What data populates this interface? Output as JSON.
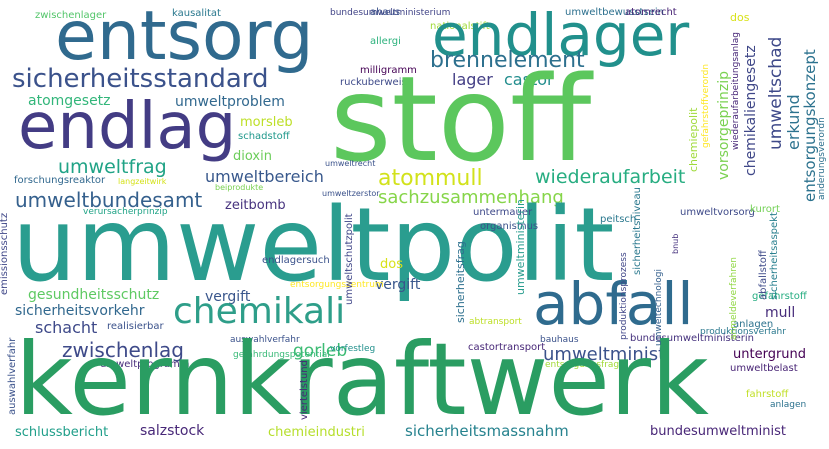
{
  "words": [
    {
      "text": "umweltpolit",
      "color": "#2a9d8f"
    },
    {
      "text": "kernkraftwerk",
      "color": "#2a9d62"
    },
    {
      "text": "stoff",
      "color": "#5cc75d"
    },
    {
      "text": "entsorg",
      "color": "#306a8e"
    },
    {
      "text": "endlager",
      "color": "#21908c"
    },
    {
      "text": "endlag",
      "color": "#433c84"
    },
    {
      "text": "chemikali",
      "color": "#2e9e89"
    },
    {
      "text": "abfall",
      "color": "#2f6b8e"
    },
    {
      "text": "sicherheitsstandard",
      "color": "#3b528b"
    },
    {
      "text": "brennelement",
      "color": "#2d708e"
    },
    {
      "text": "atommull",
      "color": "#d2e21b"
    },
    {
      "text": "wiederaufarbeit",
      "color": "#27ad81"
    },
    {
      "text": "umweltbundesamt",
      "color": "#35608d"
    },
    {
      "text": "sachzusammenhang",
      "color": "#86d549"
    },
    {
      "text": "zwischenlag",
      "color": "#3e4a89"
    },
    {
      "text": "umweltminist",
      "color": "#3b528b"
    },
    {
      "text": "gorleb",
      "color": "#3dbc74"
    },
    {
      "text": "umweltfrag",
      "color": "#20a386"
    },
    {
      "text": "umweltbereich",
      "color": "#38588c"
    },
    {
      "text": "umweltproblem",
      "color": "#31688e"
    },
    {
      "text": "lager",
      "color": "#433e85"
    },
    {
      "text": "castor",
      "color": "#228d8d"
    },
    {
      "text": "atomgesetz",
      "color": "#32b67a"
    },
    {
      "text": "umweltschad",
      "color": "#3e4989"
    },
    {
      "text": "erkund",
      "color": "#2c728e"
    },
    {
      "text": "morsleb",
      "color": "#bddf26"
    },
    {
      "text": "dioxin",
      "color": "#6ccd5a"
    },
    {
      "text": "zeitbomb",
      "color": "#46327e"
    },
    {
      "text": "vergift",
      "color": "#39568c"
    },
    {
      "text": "gesundheitsschutz",
      "color": "#5ec962"
    },
    {
      "text": "sicherheitsvorkehr",
      "color": "#31688e"
    },
    {
      "text": "schacht",
      "color": "#3e4989"
    },
    {
      "text": "salzstock",
      "color": "#482878"
    },
    {
      "text": "schlussbericht",
      "color": "#1f9e89"
    },
    {
      "text": "chemieindustri",
      "color": "#b5de2b"
    },
    {
      "text": "sicherheitsmassnahm",
      "color": "#26828e"
    },
    {
      "text": "bundesumweltminist",
      "color": "#482677"
    },
    {
      "text": "untergrund",
      "color": "#440154"
    },
    {
      "text": "umweltbelast",
      "color": "#482475"
    },
    {
      "text": "mull",
      "color": "#472d7b"
    },
    {
      "text": "dos",
      "color": "#d8e219"
    },
    {
      "text": "chemiepolit",
      "color": "#9fda3a"
    },
    {
      "text": "vorsorgeprinzip",
      "color": "#7ad151"
    },
    {
      "text": "entsorgungskonzept",
      "color": "#2c728e"
    },
    {
      "text": "chemikaliengesetz",
      "color": "#3f4788"
    },
    {
      "text": "zwischenlager",
      "color": "#52c569"
    },
    {
      "text": "kausalitat",
      "color": "#2a788e"
    },
    {
      "text": "bundesumweltministerium",
      "color": "#414487"
    },
    {
      "text": "ahaus",
      "color": "#3b528b"
    },
    {
      "text": "umweltbewusstsein",
      "color": "#2d708e"
    },
    {
      "text": "atomrecht",
      "color": "#482475"
    },
    {
      "text": "nationalstift",
      "color": "#a0da39"
    },
    {
      "text": "allergi",
      "color": "#2db27d"
    },
    {
      "text": "milligramm",
      "color": "#440154"
    },
    {
      "text": "ruckuberweis",
      "color": "#3e4a89"
    },
    {
      "text": "sicherheitsgrund",
      "color": "#35b779"
    },
    {
      "text": "storfallverordn",
      "color": "#21a685"
    },
    {
      "text": "forschungsreaktor",
      "color": "#31688e"
    },
    {
      "text": "langzeitwirk",
      "color": "#d5e21a"
    },
    {
      "text": "gefahrstoffverordn",
      "color": "#fde725"
    },
    {
      "text": "wiederaufarbeitungsanlag",
      "color": "#482878"
    },
    {
      "text": "schadstoff",
      "color": "#1f988b"
    },
    {
      "text": "umweltrecht",
      "color": "#3b528b"
    },
    {
      "text": "umweltzerstor",
      "color": "#3b528b"
    },
    {
      "text": "beiprodukte",
      "color": "#7ad151"
    },
    {
      "text": "verursacherprinzip",
      "color": "#20a386"
    },
    {
      "text": "emissionsschutz",
      "color": "#3f4788"
    },
    {
      "text": "umweltschutzpolit",
      "color": "#404688"
    },
    {
      "text": "umweltministerin",
      "color": "#2a9d8f"
    },
    {
      "text": "sicherheitsfrag",
      "color": "#2d708e"
    },
    {
      "text": "untermauer",
      "color": "#3e4989"
    },
    {
      "text": "organismus",
      "color": "#3b528b"
    },
    {
      "text": "peitsch",
      "color": "#2a788e"
    },
    {
      "text": "endlagersuch",
      "color": "#3b528b"
    },
    {
      "text": "produktionsprozess",
      "color": "#404688"
    },
    {
      "text": "umweltvorsorg",
      "color": "#3e4a89"
    },
    {
      "text": "umweltechnologi",
      "color": "#35608d"
    },
    {
      "text": "kurort",
      "color": "#73d056"
    },
    {
      "text": "sicherheitsaspekt",
      "color": "#277f8e"
    },
    {
      "text": "anderungsverordn",
      "color": "#2d708e"
    },
    {
      "text": "entsorgungszentrum",
      "color": "#fde725"
    },
    {
      "text": "realisierbar",
      "color": "#3b528b"
    },
    {
      "text": "abtransport",
      "color": "#bddf26"
    },
    {
      "text": "gefahrstoff",
      "color": "#26ad81"
    },
    {
      "text": "produktionsverfahr",
      "color": "#2a788e"
    },
    {
      "text": "anmeldeverfahren",
      "color": "#90d743"
    },
    {
      "text": "bnub",
      "color": "#46327e"
    },
    {
      "text": "umweltprogramm",
      "color": "#472d7b"
    },
    {
      "text": "auswahlverfahr",
      "color": "#3b528b"
    },
    {
      "text": "gefahrdungspotential",
      "color": "#38b977"
    },
    {
      "text": "vorfestleg",
      "color": "#21908c"
    },
    {
      "text": "castortransport",
      "color": "#482878"
    },
    {
      "text": "bauhaus",
      "color": "#3b528b"
    },
    {
      "text": "bundesumweltministerin",
      "color": "#46327e"
    },
    {
      "text": "entsorgungsfrag",
      "color": "#a2da37"
    },
    {
      "text": "sicherheitsniveau",
      "color": "#2a788e"
    },
    {
      "text": "viertelstund",
      "color": "#482878"
    },
    {
      "text": "fahrstoff",
      "color": "#c0df25"
    },
    {
      "text": "abfallstoff",
      "color": "#3e4a89"
    },
    {
      "text": "anlagen",
      "color": "#2c728e"
    },
    {
      "text": "zwischenlag",
      "color": "#d8e219"
    }
  ]
}
